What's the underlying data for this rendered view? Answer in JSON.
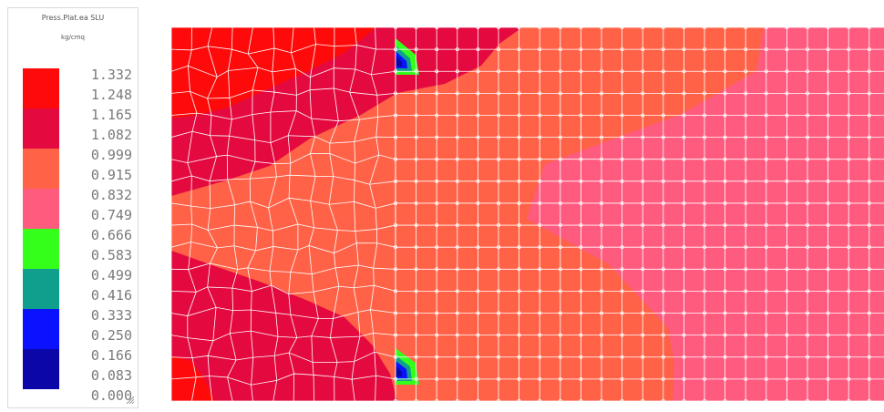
{
  "legend": {
    "title": "Press.Plat.ea SLU",
    "unit": "kg/cmq",
    "values": [
      "1.332",
      "1.248",
      "1.165",
      "1.082",
      "0.999",
      "0.915",
      "0.832",
      "0.749",
      "0.666",
      "0.583",
      "0.499",
      "0.416",
      "0.333",
      "0.250",
      "0.166",
      "0.083",
      "0.000"
    ],
    "colors": [
      "#ff0a0a",
      "#e4093f",
      "#ff6247",
      "#ff5b7f",
      "#33ff1b",
      "#0f9f8c",
      "#0a12ff",
      "#0a06a8"
    ]
  }
}
